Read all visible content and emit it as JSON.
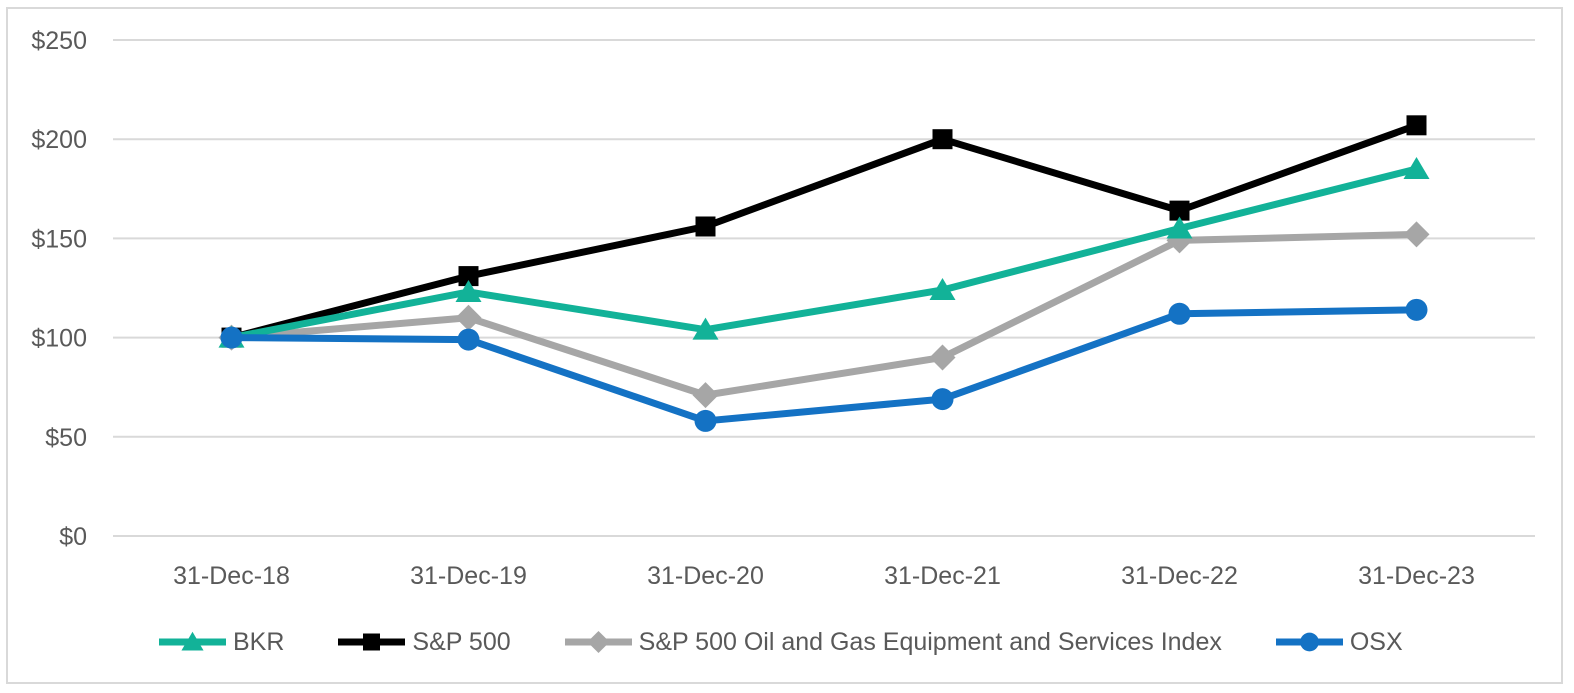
{
  "chart_data": {
    "type": "line",
    "title": "",
    "xlabel": "",
    "ylabel": "",
    "categories": [
      "31-Dec-18",
      "31-Dec-19",
      "31-Dec-20",
      "31-Dec-21",
      "31-Dec-22",
      "31-Dec-23"
    ],
    "series": [
      {
        "name": "BKR",
        "values": [
          100,
          123,
          104,
          124,
          155,
          185
        ],
        "color": "#12B298",
        "marker": "triangle"
      },
      {
        "name": "S&P 500",
        "values": [
          100,
          131,
          156,
          200,
          164,
          207
        ],
        "color": "#000000",
        "marker": "square"
      },
      {
        "name": "S&P 500 Oil and Gas Equipment and Services Index",
        "values": [
          100,
          110,
          71,
          90,
          149,
          152
        ],
        "color": "#A6A6A6",
        "marker": "diamond"
      },
      {
        "name": "OSX",
        "values": [
          100,
          99,
          58,
          69,
          112,
          114
        ],
        "color": "#1472C4",
        "marker": "circle"
      }
    ],
    "y_ticks": [
      "$0",
      "$50",
      "$100",
      "$150",
      "$200",
      "$250"
    ],
    "ylim": [
      0,
      250
    ],
    "grid": true,
    "legend_position": "bottom"
  },
  "colors": {
    "gridline": "#D9D9D9",
    "axis_text": "#595959",
    "border": "#D9D9D9",
    "background": "#FFFFFF"
  }
}
